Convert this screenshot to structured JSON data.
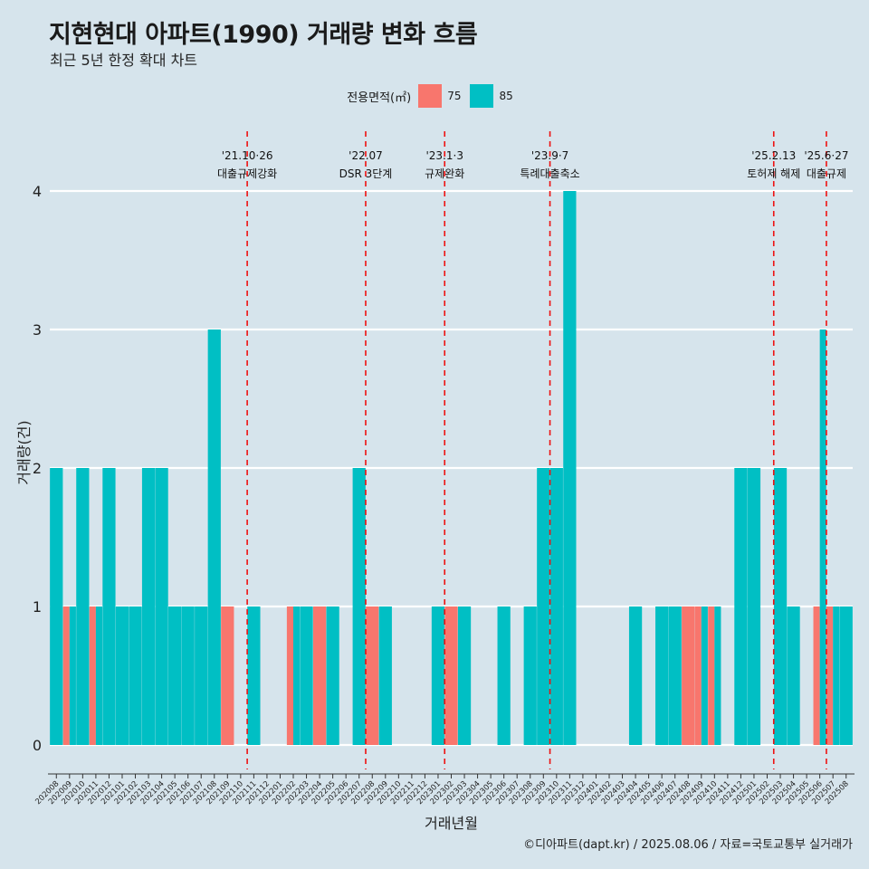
{
  "title": "지현현대 아파트(1990) 거래량 변화 흐름",
  "subtitle": "최근 5년 한정 확대 차트",
  "caption": "©디아파트(dapt.kr) / 2025.08.06 / 자료=국토교통부 실거래가",
  "legend": {
    "title": "전용면적(㎡)",
    "items": [
      {
        "label": "75",
        "color": "#F8766D"
      },
      {
        "label": "85",
        "color": "#00BFC4"
      }
    ]
  },
  "chart_data": {
    "type": "bar",
    "xlabel": "거래년월",
    "ylabel": "거래량(건)",
    "ylim": [
      0,
      4.2
    ],
    "yticks": [
      0,
      1,
      2,
      3,
      4
    ],
    "grid": true,
    "legend_position": "top",
    "categories": [
      "202008",
      "202009",
      "202010",
      "202011",
      "202012",
      "202101",
      "202102",
      "202103",
      "202104",
      "202105",
      "202106",
      "202107",
      "202108",
      "202109",
      "202110",
      "202111",
      "202112",
      "202201",
      "202202",
      "202203",
      "202204",
      "202205",
      "202206",
      "202207",
      "202208",
      "202209",
      "202210",
      "202211",
      "202212",
      "202301",
      "202302",
      "202303",
      "202304",
      "202305",
      "202306",
      "202307",
      "202308",
      "202309",
      "202310",
      "202311",
      "202312",
      "202401",
      "202402",
      "202403",
      "202404",
      "202405",
      "202406",
      "202407",
      "202408",
      "202409",
      "202410",
      "202411",
      "202412",
      "202501",
      "202502",
      "202503",
      "202504",
      "202505",
      "202506",
      "202507",
      "202508"
    ],
    "series": [
      {
        "name": "75",
        "color": "#F8766D",
        "values": [
          0,
          1,
          0,
          1,
          0,
          0,
          0,
          0,
          0,
          0,
          0,
          0,
          0,
          1,
          0,
          0,
          0,
          0,
          1,
          0,
          1,
          0,
          0,
          0,
          1,
          0,
          0,
          0,
          0,
          0,
          1,
          0,
          0,
          0,
          0,
          0,
          0,
          0,
          0,
          0,
          0,
          0,
          0,
          0,
          0,
          0,
          0,
          0,
          1,
          1,
          1,
          0,
          0,
          0,
          0,
          0,
          0,
          0,
          1,
          1,
          0
        ]
      },
      {
        "name": "85",
        "color": "#00BFC4",
        "values": [
          2,
          1,
          2,
          1,
          2,
          1,
          1,
          2,
          2,
          1,
          1,
          1,
          3,
          0,
          0,
          1,
          0,
          0,
          1,
          1,
          0,
          1,
          0,
          2,
          0,
          1,
          0,
          0,
          0,
          1,
          0,
          1,
          0,
          0,
          1,
          0,
          1,
          2,
          2,
          4,
          0,
          0,
          0,
          0,
          1,
          0,
          1,
          1,
          0,
          1,
          1,
          0,
          2,
          2,
          0,
          2,
          1,
          0,
          3,
          1,
          1
        ]
      }
    ],
    "annotations": [
      {
        "date": "'21.10·26",
        "text": "대출규제강화",
        "index": 14
      },
      {
        "date": "'22.07",
        "text": "DSR 3단계",
        "index": 23
      },
      {
        "date": "'23.1·3",
        "text": "규제완화",
        "index": 29
      },
      {
        "date": "'23.9·7",
        "text": "특례대출축소",
        "index": 37
      },
      {
        "date": "'25.2.13",
        "text": "토허제 해제",
        "index": 54
      },
      {
        "date": "'25.6·27",
        "text": "대출규제",
        "index": 58
      }
    ]
  }
}
